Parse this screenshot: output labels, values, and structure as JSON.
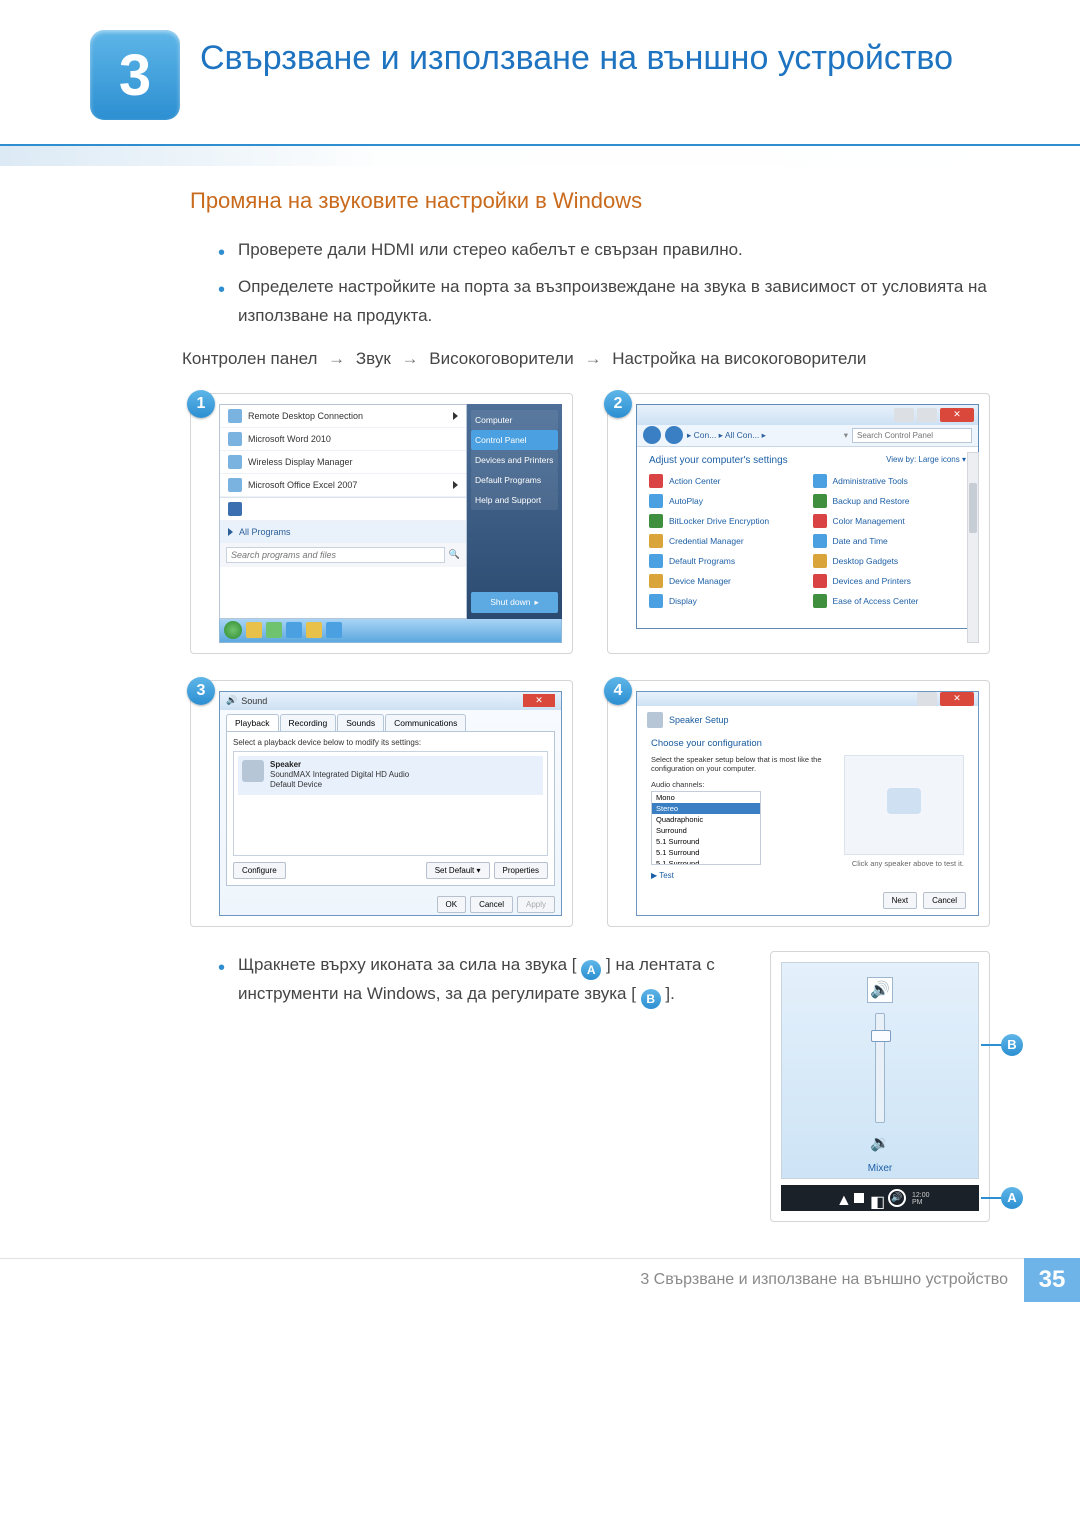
{
  "chapter": {
    "number": "3",
    "title": "Свързване и използване на външно устройство"
  },
  "section_heading": "Промяна на звуковите настройки в Windows",
  "bullets": [
    "Проверете дали HDMI или стерео кабелът е свързан правилно.",
    "Определете настройките на порта за възпроизвеждане на звука в зависимост от условията на използване на продукта."
  ],
  "path": {
    "p1": "Контролен панел",
    "p2": "Звук",
    "p3": "Високоговорители",
    "p4": "Настройка на високоговорители",
    "arrow": "→"
  },
  "step_badges": {
    "s1": "1",
    "s2": "2",
    "s3": "3",
    "s4": "4"
  },
  "startmenu": {
    "items": [
      "Remote Desktop Connection",
      "Microsoft Word 2010",
      "Wireless Display Manager",
      "Microsoft Office Excel 2007"
    ],
    "allprograms": "All Programs",
    "search_placeholder": "Search programs and files",
    "right": [
      "Computer",
      "Control Panel",
      "Devices and Printers",
      "Default Programs",
      "Help and Support"
    ],
    "shutdown": "Shut down"
  },
  "controlpanel": {
    "crumb": "▸ Con... ▸ All Con... ▸",
    "search_placeholder": "Search Control Panel",
    "subtitle": "Adjust your computer's settings",
    "viewby": "View by:  Large icons ▾",
    "items_left": [
      "Action Center",
      "AutoPlay",
      "BitLocker Drive Encryption",
      "Credential Manager",
      "Default Programs",
      "Device Manager",
      "Display"
    ],
    "items_right": [
      "Administrative Tools",
      "Backup and Restore",
      "Color Management",
      "Date and Time",
      "Desktop Gadgets",
      "Devices and Printers",
      "Ease of Access Center"
    ],
    "icon_colors_left": [
      "#d94343",
      "#4aa0e0",
      "#3f8f3f",
      "#d9a43a",
      "#4aa0e0",
      "#d9a43a",
      "#4aa0e0"
    ],
    "icon_colors_right": [
      "#4aa0e0",
      "#3f8f3f",
      "#d94343",
      "#4aa0e0",
      "#d9a43a",
      "#d94343",
      "#3f8f3f"
    ]
  },
  "sound": {
    "title": "Sound",
    "tabs": [
      "Playback",
      "Recording",
      "Sounds",
      "Communications"
    ],
    "desc": "Select a playback device below to modify its settings:",
    "device_name": "Speaker",
    "device_sub1": "SoundMAX Integrated Digital HD Audio",
    "device_sub2": "Default Device",
    "btn_configure": "Configure",
    "btn_setdefault": "Set Default  ▾",
    "btn_properties": "Properties",
    "btn_ok": "OK",
    "btn_cancel": "Cancel",
    "btn_apply": "Apply"
  },
  "speakersetup": {
    "hdr": "Speaker Setup",
    "choose": "Choose your configuration",
    "desc": "Select the speaker setup below that is most like the configuration on your computer.",
    "label": "Audio channels:",
    "options": [
      "Mono",
      "Stereo",
      "Quadraphonic",
      "Surround",
      "5.1 Surround",
      "5.1 Surround",
      "5.1 Surround"
    ],
    "test": "▶ Test",
    "note": "Click any speaker above to test it.",
    "btn_next": "Next",
    "btn_cancel": "Cancel"
  },
  "lower_text": {
    "p1": "Щракнете върху иконата за сила на звука [",
    "badgeA": "A",
    "p2": "] на лентата с инструменти на Windows, за да регулирате звука [",
    "badgeB": "B",
    "p3": "]."
  },
  "volume": {
    "mixer": "Mixer",
    "labelA": "A",
    "labelB": "B"
  },
  "footer": {
    "title": "3 Свързване и използване на външно устройство",
    "page": "35"
  },
  "colors": {
    "accent_blue": "#2e8ed0",
    "heading_orange": "#c96a1c",
    "badge_grad_top": "#5fb6e8",
    "badge_grad_bot": "#2c8fd1"
  }
}
